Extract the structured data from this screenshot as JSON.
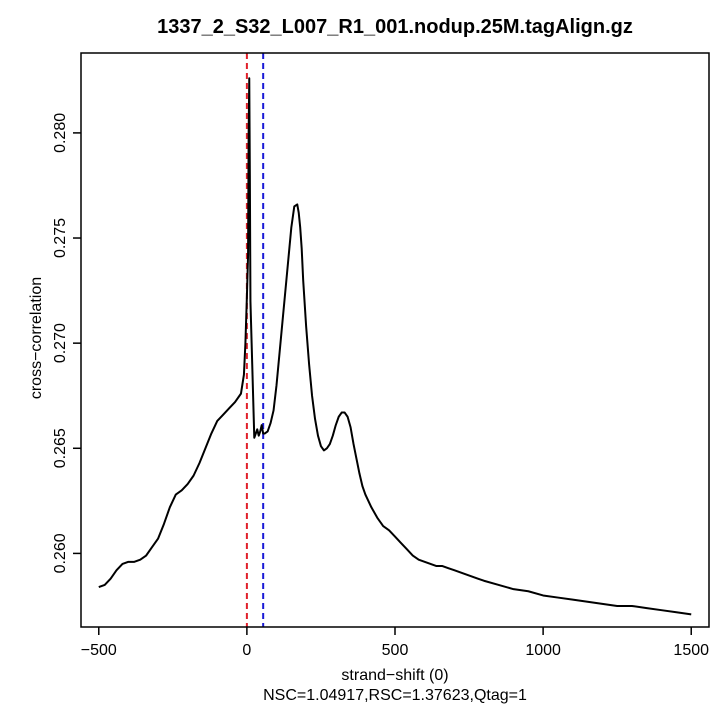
{
  "chart_data": {
    "type": "line",
    "title": "1337_2_S32_L007_R1_001.nodup.25M.tagAlign.gz",
    "xlabel": "strand−shift (0)",
    "ylabel": "cross−correlation",
    "subtitle": "NSC=1.04917,RSC=1.37623,Qtag=1",
    "xlim": [
      -560,
      1560
    ],
    "ylim": [
      0.2565,
      0.2838
    ],
    "xticks": [
      -500,
      0,
      500,
      1000,
      1500
    ],
    "xtick_labels": [
      "−500",
      "0",
      "500",
      "1000",
      "1500"
    ],
    "yticks": [
      0.26,
      0.265,
      0.27,
      0.275,
      0.28
    ],
    "ytick_labels": [
      "0.260",
      "0.265",
      "0.270",
      "0.275",
      "0.280"
    ],
    "grid": false,
    "vlines": [
      {
        "x": 0,
        "color": "#e0202a",
        "style": "dashed"
      },
      {
        "x": 55,
        "color": "#1a1ad6",
        "style": "dashed"
      }
    ],
    "series": [
      {
        "color": "#000000",
        "x": [
          -500,
          -480,
          -460,
          -440,
          -420,
          -400,
          -380,
          -360,
          -340,
          -320,
          -300,
          -280,
          -260,
          -240,
          -220,
          -200,
          -180,
          -160,
          -140,
          -120,
          -100,
          -80,
          -60,
          -40,
          -20,
          -10,
          -5,
          0,
          2,
          4,
          6,
          8,
          10,
          12,
          14,
          16,
          18,
          20,
          25,
          30,
          35,
          40,
          45,
          50,
          55,
          60,
          70,
          80,
          90,
          100,
          110,
          120,
          130,
          140,
          150,
          160,
          170,
          175,
          180,
          185,
          190,
          200,
          210,
          220,
          230,
          240,
          250,
          260,
          270,
          280,
          290,
          300,
          310,
          320,
          330,
          340,
          350,
          360,
          370,
          380,
          390,
          400,
          420,
          440,
          460,
          480,
          500,
          520,
          540,
          560,
          580,
          600,
          620,
          640,
          660,
          680,
          700,
          720,
          740,
          760,
          780,
          800,
          850,
          900,
          950,
          1000,
          1050,
          1100,
          1150,
          1200,
          1250,
          1300,
          1350,
          1400,
          1450,
          1500
        ],
        "values": [
          0.2584,
          0.2585,
          0.2588,
          0.2592,
          0.2595,
          0.2596,
          0.2596,
          0.2597,
          0.2599,
          0.2603,
          0.2607,
          0.2614,
          0.2622,
          0.2628,
          0.263,
          0.2633,
          0.2637,
          0.2643,
          0.265,
          0.2657,
          0.2663,
          0.2666,
          0.2669,
          0.2672,
          0.2676,
          0.2685,
          0.27,
          0.2722,
          0.2732,
          0.2742,
          0.28,
          0.2826,
          0.278,
          0.272,
          0.271,
          0.27,
          0.269,
          0.268,
          0.2655,
          0.2657,
          0.2659,
          0.2656,
          0.2658,
          0.2661,
          0.2657,
          0.2657,
          0.2658,
          0.2662,
          0.2668,
          0.268,
          0.2695,
          0.271,
          0.2725,
          0.274,
          0.2755,
          0.2765,
          0.2766,
          0.2762,
          0.2755,
          0.2745,
          0.273,
          0.2708,
          0.269,
          0.2675,
          0.2664,
          0.2656,
          0.2651,
          0.2649,
          0.265,
          0.2652,
          0.2656,
          0.2661,
          0.2665,
          0.2667,
          0.2667,
          0.2665,
          0.266,
          0.2652,
          0.2645,
          0.2638,
          0.2632,
          0.2628,
          0.2622,
          0.2617,
          0.2613,
          0.2611,
          0.2608,
          0.2605,
          0.2602,
          0.2599,
          0.2597,
          0.2596,
          0.2595,
          0.2594,
          0.2594,
          0.2593,
          0.2592,
          0.2591,
          0.259,
          0.2589,
          0.2588,
          0.2587,
          0.2585,
          0.2583,
          0.2582,
          0.258,
          0.2579,
          0.2578,
          0.2577,
          0.2576,
          0.2575,
          0.2575,
          0.2574,
          0.2573,
          0.2572,
          0.2571
        ]
      }
    ]
  }
}
